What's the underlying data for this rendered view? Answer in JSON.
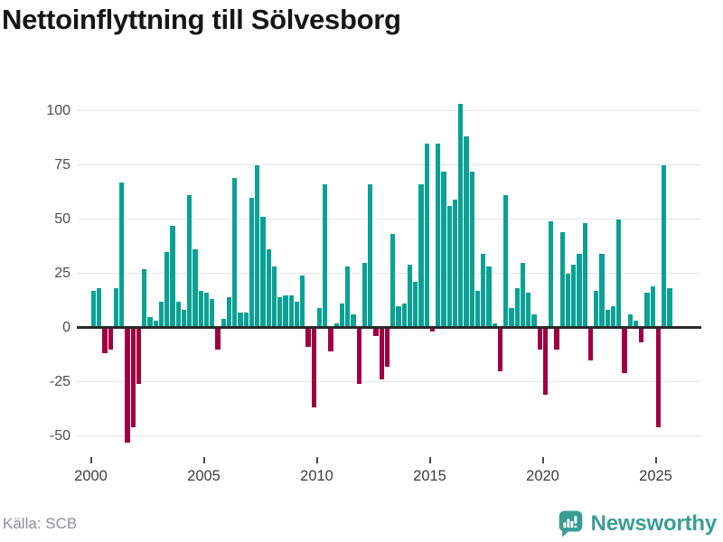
{
  "title": "Nettoinflyttning till Sölvesborg",
  "source": "Källa: SCB",
  "logo": {
    "text": "Newsworthy"
  },
  "colors": {
    "positive": "#0aa294",
    "negative": "#a00041",
    "zero_line": "#2b2b2b",
    "gridline": "#e4e4e4",
    "axis_label": "#4c4c4c",
    "title": "#161616",
    "source": "#8d8d96",
    "logo": "#3a9d95"
  },
  "chart_data": {
    "type": "bar",
    "title": "Nettoinflyttning till Sölvesborg",
    "frequency": "quarterly",
    "start_period": "2000 Q1",
    "end_period": "2025 Q3",
    "grid": true,
    "legend": false,
    "ylim": [
      -57,
      112
    ],
    "y_ticks": [
      100,
      75,
      50,
      25,
      0,
      -25,
      -50
    ],
    "y_tick_labels": [
      "100",
      "75",
      "50",
      "25",
      "0",
      "-25",
      "-50"
    ],
    "x_tick_labels": [
      "2000",
      "2005",
      "2010",
      "2015",
      "2020",
      "2025"
    ],
    "x_tick_years": [
      2000,
      2005,
      2010,
      2015,
      2020,
      2025
    ],
    "values": [
      17,
      18,
      -12,
      -10,
      18,
      67,
      -53,
      -46,
      -26,
      27,
      5,
      3,
      12,
      35,
      47,
      12,
      8,
      61,
      36,
      17,
      16,
      13,
      -10,
      4,
      14,
      69,
      7,
      7,
      60,
      75,
      51,
      36,
      28,
      14,
      15,
      15,
      12,
      24,
      -9,
      -37,
      9,
      66,
      -11,
      2,
      11,
      28,
      6,
      -26,
      30,
      66,
      -4,
      -24,
      -18,
      43,
      10,
      11,
      29,
      21,
      66,
      85,
      -2,
      85,
      72,
      56,
      59,
      103,
      88,
      72,
      17,
      34,
      28,
      2,
      -20,
      61,
      9,
      18,
      30,
      16,
      6,
      -10,
      -31,
      49,
      -10,
      44,
      25,
      29,
      34,
      48,
      -15,
      17,
      34,
      8,
      10,
      50,
      -21,
      6,
      3,
      -7,
      16,
      19,
      -46,
      75,
      18
    ]
  }
}
